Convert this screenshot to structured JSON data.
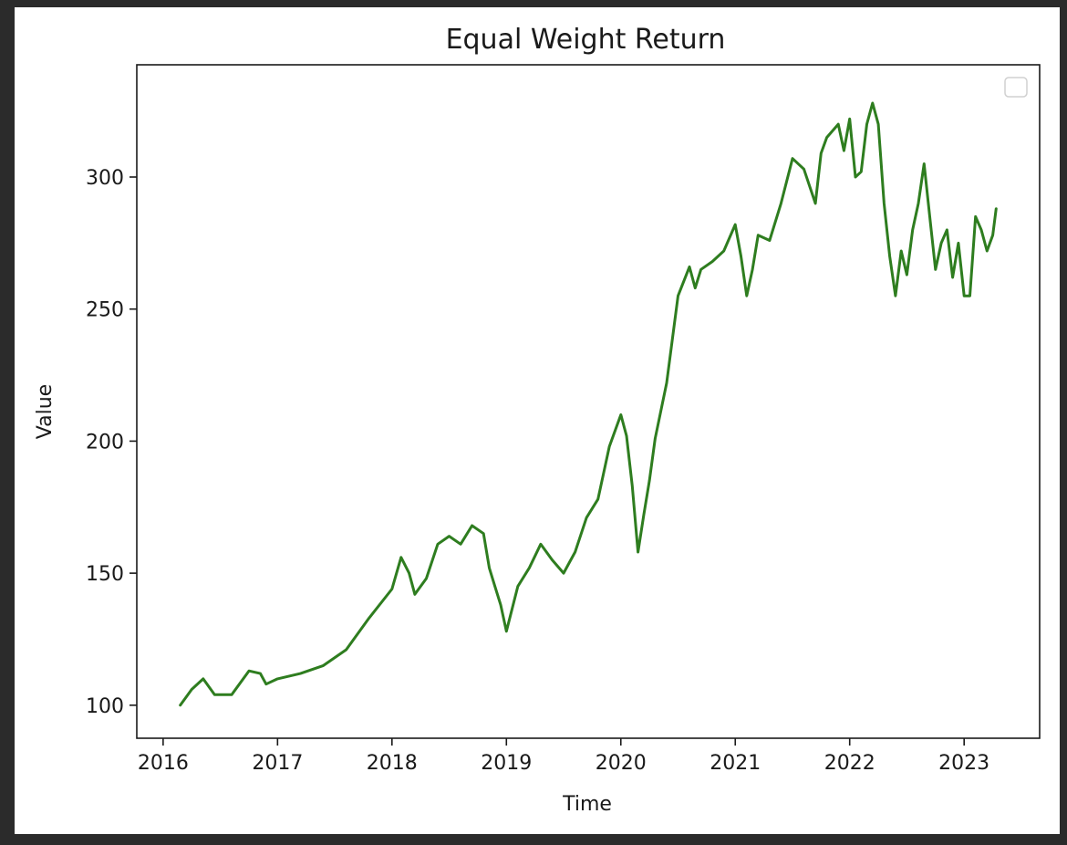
{
  "chart_data": {
    "type": "line",
    "title": "Equal Weight Return",
    "xlabel": "Time",
    "ylabel": "Value",
    "xlim": [
      2015.77,
      2023.66
    ],
    "ylim": [
      87.5,
      342.5
    ],
    "x_ticks": [
      2016,
      2017,
      2018,
      2019,
      2020,
      2021,
      2022,
      2023
    ],
    "y_ticks": [
      100,
      150,
      200,
      250,
      300
    ],
    "legend": {
      "placement": "top-right",
      "entries": []
    },
    "grid": false,
    "series": [
      {
        "color": "#2e7d1f",
        "x": [
          2016.15,
          2016.25,
          2016.35,
          2016.45,
          2016.6,
          2016.75,
          2016.85,
          2016.9,
          2017.0,
          2017.2,
          2017.4,
          2017.6,
          2017.8,
          2018.0,
          2018.08,
          2018.15,
          2018.2,
          2018.3,
          2018.4,
          2018.5,
          2018.6,
          2018.7,
          2018.8,
          2018.85,
          2018.9,
          2018.95,
          2019.0,
          2019.1,
          2019.2,
          2019.3,
          2019.4,
          2019.5,
          2019.55,
          2019.6,
          2019.7,
          2019.8,
          2019.9,
          2020.0,
          2020.05,
          2020.1,
          2020.15,
          2020.2,
          2020.25,
          2020.3,
          2020.4,
          2020.5,
          2020.6,
          2020.65,
          2020.7,
          2020.8,
          2020.9,
          2021.0,
          2021.05,
          2021.1,
          2021.15,
          2021.2,
          2021.3,
          2021.4,
          2021.5,
          2021.6,
          2021.7,
          2021.75,
          2021.8,
          2021.9,
          2021.95,
          2022.0,
          2022.05,
          2022.1,
          2022.15,
          2022.2,
          2022.25,
          2022.3,
          2022.35,
          2022.4,
          2022.45,
          2022.5,
          2022.55,
          2022.6,
          2022.65,
          2022.7,
          2022.75,
          2022.8,
          2022.85,
          2022.9,
          2022.95,
          2023.0,
          2023.05,
          2023.1,
          2023.15,
          2023.2,
          2023.25,
          2023.28
        ],
        "y": [
          100,
          106,
          110,
          104,
          104,
          113,
          112,
          108,
          110,
          112,
          115,
          121,
          133,
          144,
          156,
          150,
          142,
          148,
          161,
          164,
          161,
          168,
          165,
          152,
          145,
          138,
          128,
          145,
          152,
          161,
          155,
          150,
          154,
          158,
          171,
          178,
          198,
          210,
          202,
          183,
          158,
          172,
          185,
          201,
          222,
          255,
          266,
          258,
          265,
          268,
          272,
          282,
          270,
          255,
          265,
          278,
          276,
          290,
          307,
          303,
          290,
          309,
          315,
          320,
          310,
          322,
          300,
          302,
          320,
          328,
          320,
          290,
          270,
          255,
          272,
          263,
          280,
          290,
          305,
          285,
          265,
          275,
          280,
          262,
          275,
          255,
          255,
          285,
          280,
          272,
          278,
          288
        ]
      }
    ]
  }
}
